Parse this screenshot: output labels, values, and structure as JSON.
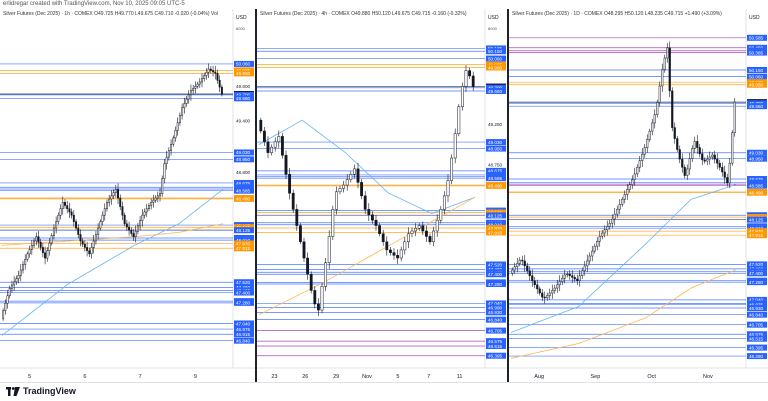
{
  "header": {
    "text": "erlidregar created with TradingView.com, Nov 10, 2025 09:05 UTC-5"
  },
  "footer": {
    "brand": "TradingView"
  },
  "colors": {
    "level_blue": "#2962ff",
    "level_magenta": "#9c27b0",
    "level_orange": "#ff9800",
    "ma_blue": "#64b5f6",
    "ma_orange": "#ffb74d",
    "candle": "#131722",
    "current_price_bg": "#131722"
  },
  "panels": [
    {
      "id": "left",
      "title": "Silver Futures (Dec 2025) · 1h · COMEX  O49.725  H49.770  L49.675  C49.710  -0.020 (-0.04%)  Vol",
      "currency": "USD",
      "unit_label": "8000",
      "x_labels": [
        "5",
        "6",
        "7",
        "9"
      ],
      "price_labels": [
        {
          "v": "50.060",
          "k": "blue"
        },
        {
          "v": "49.985",
          "k": "orange"
        },
        {
          "v": "49.950",
          "k": "orange"
        },
        {
          "v": "49.800",
          "k": "plain"
        },
        {
          "v": "49.710",
          "k": "current"
        },
        {
          "v": "49.700",
          "k": "blue"
        },
        {
          "v": "49.660",
          "k": "blue"
        },
        {
          "v": "49.400",
          "k": "plain"
        },
        {
          "v": "49.030",
          "k": "blue"
        },
        {
          "v": "48.950",
          "k": "blue"
        },
        {
          "v": "48.800",
          "k": "plain"
        },
        {
          "v": "48.675",
          "k": "blue"
        },
        {
          "v": "48.625",
          "k": "blue"
        },
        {
          "v": "48.605",
          "k": "blue"
        },
        {
          "v": "48.585",
          "k": "blue"
        },
        {
          "v": "48.500",
          "k": "orange"
        },
        {
          "v": "48.490",
          "k": "orange"
        },
        {
          "v": "48.185",
          "k": "blue"
        },
        {
          "v": "48.160",
          "k": "orange"
        },
        {
          "v": "48.130",
          "k": "orange"
        },
        {
          "v": "48.125",
          "k": "blue"
        },
        {
          "v": "48.035",
          "k": "blue"
        },
        {
          "v": "48.010",
          "k": "blue"
        },
        {
          "v": "47.970",
          "k": "orange"
        },
        {
          "v": "47.915",
          "k": "orange"
        },
        {
          "v": "47.520",
          "k": "blue"
        },
        {
          "v": "47.460",
          "k": "blue"
        },
        {
          "v": "47.425",
          "k": "blue"
        },
        {
          "v": "47.400",
          "k": "blue"
        },
        {
          "v": "47.300",
          "k": "blue"
        },
        {
          "v": "47.280",
          "k": "blue"
        },
        {
          "v": "47.040",
          "k": "blue"
        },
        {
          "v": "46.975",
          "k": "blue"
        },
        {
          "v": "46.915",
          "k": "blue"
        },
        {
          "v": "46.840",
          "k": "blue"
        }
      ]
    },
    {
      "id": "middle",
      "title": "Silver Futures (Dec 2025) · 4h · COMEX  O49.880  H50.120  L49.675  C49.715  -0.160 (-0.32%)",
      "currency": "USD",
      "unit_label": "8000",
      "x_labels": [
        "23",
        "26",
        "29",
        "Nov",
        "5",
        "7",
        "11"
      ],
      "price_labels": [
        {
          "v": "50.185",
          "k": "blue"
        },
        {
          "v": "50.150",
          "k": "blue"
        },
        {
          "v": "50.060",
          "k": "blue"
        },
        {
          "v": "49.985",
          "k": "orange"
        },
        {
          "v": "49.950",
          "k": "orange"
        },
        {
          "v": "49.715",
          "k": "current"
        },
        {
          "v": "49.700",
          "k": "blue"
        },
        {
          "v": "49.660",
          "k": "blue"
        },
        {
          "v": "49.250",
          "k": "plain"
        },
        {
          "v": "49.030",
          "k": "blue"
        },
        {
          "v": "48.950",
          "k": "blue"
        },
        {
          "v": "48.750",
          "k": "plain"
        },
        {
          "v": "48.675",
          "k": "blue"
        },
        {
          "v": "48.625",
          "k": "blue"
        },
        {
          "v": "48.605",
          "k": "blue"
        },
        {
          "v": "48.585",
          "k": "blue"
        },
        {
          "v": "48.500",
          "k": "orange"
        },
        {
          "v": "48.490",
          "k": "orange"
        },
        {
          "v": "48.185",
          "k": "blue"
        },
        {
          "v": "48.160",
          "k": "orange"
        },
        {
          "v": "48.130",
          "k": "orange"
        },
        {
          "v": "48.125",
          "k": "blue"
        },
        {
          "v": "48.035",
          "k": "blue"
        },
        {
          "v": "48.010",
          "k": "blue"
        },
        {
          "v": "47.970",
          "k": "orange"
        },
        {
          "v": "47.915",
          "k": "orange"
        },
        {
          "v": "47.520",
          "k": "blue"
        },
        {
          "v": "47.460",
          "k": "blue"
        },
        {
          "v": "47.425",
          "k": "blue"
        },
        {
          "v": "47.400",
          "k": "blue"
        },
        {
          "v": "47.300",
          "k": "blue"
        },
        {
          "v": "47.280",
          "k": "blue"
        },
        {
          "v": "47.040",
          "k": "blue"
        },
        {
          "v": "46.990",
          "k": "blue"
        },
        {
          "v": "46.930",
          "k": "blue"
        },
        {
          "v": "46.840",
          "k": "blue"
        },
        {
          "v": "46.705",
          "k": "blue"
        },
        {
          "v": "46.575",
          "k": "blue"
        },
        {
          "v": "46.515",
          "k": "blue"
        },
        {
          "v": "46.395",
          "k": "blue"
        }
      ]
    },
    {
      "id": "right",
      "title": "Silver Futures (Dec 2025) · 1D · COMEX  O48.295  H50.120  L48.235  C49.715  +1.490 (+3.09%)",
      "currency": "USD",
      "unit_label": "",
      "x_labels": [
        "Aug",
        "Sep",
        "Oct",
        "Nov"
      ],
      "price_labels": [
        {
          "v": "50.585",
          "k": "blue"
        },
        {
          "v": "50.450",
          "k": "blue"
        },
        {
          "v": "50.410",
          "k": "blue"
        },
        {
          "v": "50.385",
          "k": "blue"
        },
        {
          "v": "50.150",
          "k": "blue"
        },
        {
          "v": "50.060",
          "k": "blue"
        },
        {
          "v": "49.985",
          "k": "orange"
        },
        {
          "v": "49.950",
          "k": "orange"
        },
        {
          "v": "49.715",
          "k": "current"
        },
        {
          "v": "49.700",
          "k": "blue"
        },
        {
          "v": "49.660",
          "k": "blue"
        },
        {
          "v": "49.030",
          "k": "blue"
        },
        {
          "v": "48.950",
          "k": "blue"
        },
        {
          "v": "48.675",
          "k": "blue"
        },
        {
          "v": "48.625",
          "k": "blue"
        },
        {
          "v": "48.605",
          "k": "blue"
        },
        {
          "v": "48.585",
          "k": "blue"
        },
        {
          "v": "48.500",
          "k": "orange"
        },
        {
          "v": "48.490",
          "k": "orange"
        },
        {
          "v": "48.185",
          "k": "blue"
        },
        {
          "v": "48.160",
          "k": "orange"
        },
        {
          "v": "48.130",
          "k": "orange"
        },
        {
          "v": "48.125",
          "k": "blue"
        },
        {
          "v": "48.035",
          "k": "blue"
        },
        {
          "v": "48.010",
          "k": "blue"
        },
        {
          "v": "47.970",
          "k": "orange"
        },
        {
          "v": "47.915",
          "k": "orange"
        },
        {
          "v": "47.520",
          "k": "blue"
        },
        {
          "v": "47.460",
          "k": "blue"
        },
        {
          "v": "47.425",
          "k": "blue"
        },
        {
          "v": "47.400",
          "k": "blue"
        },
        {
          "v": "47.300",
          "k": "blue"
        },
        {
          "v": "47.280",
          "k": "blue"
        },
        {
          "v": "47.040",
          "k": "blue"
        },
        {
          "v": "46.990",
          "k": "blue"
        },
        {
          "v": "46.975",
          "k": "blue"
        },
        {
          "v": "46.930",
          "k": "blue"
        },
        {
          "v": "46.840",
          "k": "blue"
        },
        {
          "v": "46.705",
          "k": "blue"
        },
        {
          "v": "46.575",
          "k": "blue"
        },
        {
          "v": "46.515",
          "k": "blue"
        },
        {
          "v": "46.395",
          "k": "blue"
        },
        {
          "v": "46.280",
          "k": "blue"
        }
      ]
    }
  ],
  "chart_data": [
    {
      "type": "candlestick",
      "title": "Silver Futures (Dec 2025) · 1h · COMEX",
      "ohlc": {
        "open": 49.725,
        "high": 49.77,
        "low": 49.675,
        "close": 49.71,
        "change": -0.02,
        "change_pct": -0.04
      },
      "x_ticks": [
        "5",
        "6",
        "7",
        "9"
      ],
      "ylim": [
        46.65,
        50.35
      ],
      "close_path": [
        [
          0,
          47.1
        ],
        [
          0.04,
          47.45
        ],
        [
          0.08,
          47.6
        ],
        [
          0.12,
          47.85
        ],
        [
          0.16,
          48.05
        ],
        [
          0.2,
          47.8
        ],
        [
          0.24,
          48.15
        ],
        [
          0.28,
          48.45
        ],
        [
          0.32,
          48.3
        ],
        [
          0.36,
          48.0
        ],
        [
          0.4,
          47.85
        ],
        [
          0.44,
          48.15
        ],
        [
          0.48,
          48.45
        ],
        [
          0.52,
          48.6
        ],
        [
          0.56,
          48.2
        ],
        [
          0.6,
          48.05
        ],
        [
          0.64,
          48.3
        ],
        [
          0.68,
          48.45
        ],
        [
          0.72,
          48.55
        ],
        [
          0.74,
          48.9
        ],
        [
          0.78,
          49.2
        ],
        [
          0.82,
          49.55
        ],
        [
          0.86,
          49.75
        ],
        [
          0.9,
          49.85
        ],
        [
          0.94,
          50.0
        ],
        [
          0.97,
          49.95
        ],
        [
          1.0,
          49.71
        ]
      ],
      "moving_averages": [
        {
          "color": "blue",
          "path": [
            [
              0,
              46.9
            ],
            [
              0.3,
              47.5
            ],
            [
              0.6,
              47.95
            ],
            [
              0.8,
              48.2
            ],
            [
              1.0,
              48.6
            ]
          ]
        },
        {
          "color": "orange",
          "path": [
            [
              0,
              47.95
            ],
            [
              0.3,
              48.0
            ],
            [
              0.6,
              48.05
            ],
            [
              0.8,
              48.1
            ],
            [
              1.0,
              48.2
            ]
          ]
        }
      ]
    },
    {
      "type": "candlestick",
      "title": "Silver Futures (Dec 2025) · 4h · COMEX",
      "ohlc": {
        "open": 49.88,
        "high": 50.12,
        "low": 49.675,
        "close": 49.715,
        "change": -0.16,
        "change_pct": -0.32
      },
      "x_ticks": [
        "23",
        "26",
        "29",
        "Nov",
        "5",
        "7",
        "11"
      ],
      "ylim": [
        46.33,
        50.4
      ],
      "close_path": [
        [
          0,
          49.3
        ],
        [
          0.05,
          48.9
        ],
        [
          0.1,
          49.1
        ],
        [
          0.15,
          48.4
        ],
        [
          0.2,
          47.8
        ],
        [
          0.25,
          47.2
        ],
        [
          0.28,
          46.9
        ],
        [
          0.32,
          47.6
        ],
        [
          0.36,
          48.4
        ],
        [
          0.4,
          48.5
        ],
        [
          0.45,
          48.7
        ],
        [
          0.5,
          48.2
        ],
        [
          0.55,
          48.0
        ],
        [
          0.6,
          47.7
        ],
        [
          0.65,
          47.6
        ],
        [
          0.7,
          47.9
        ],
        [
          0.75,
          48.0
        ],
        [
          0.8,
          47.8
        ],
        [
          0.85,
          48.2
        ],
        [
          0.88,
          48.5
        ],
        [
          0.91,
          49.0
        ],
        [
          0.94,
          49.6
        ],
        [
          0.97,
          49.95
        ],
        [
          1.0,
          49.715
        ]
      ],
      "moving_averages": [
        {
          "color": "blue",
          "path": [
            [
              0,
              49.0
            ],
            [
              0.2,
              49.3
            ],
            [
              0.4,
              48.9
            ],
            [
              0.6,
              48.4
            ],
            [
              0.8,
              48.15
            ],
            [
              1.0,
              48.35
            ]
          ]
        },
        {
          "color": "orange",
          "path": [
            [
              0,
              46.9
            ],
            [
              0.3,
              47.3
            ],
            [
              0.6,
              47.75
            ],
            [
              0.8,
              48.05
            ],
            [
              1.0,
              48.35
            ]
          ]
        }
      ]
    },
    {
      "type": "candlestick",
      "title": "Silver Futures (Dec 2025) · 1D · COMEX",
      "ohlc": {
        "open": 48.295,
        "high": 50.12,
        "low": 48.235,
        "close": 49.715,
        "change": 1.49,
        "change_pct": 3.09
      },
      "x_ticks": [
        "Aug",
        "Sep",
        "Oct",
        "Nov"
      ],
      "ylim": [
        46.2,
        50.65
      ],
      "close_path": [
        [
          0,
          47.4
        ],
        [
          0.05,
          47.6
        ],
        [
          0.1,
          47.3
        ],
        [
          0.15,
          47.05
        ],
        [
          0.2,
          47.2
        ],
        [
          0.25,
          47.4
        ],
        [
          0.3,
          47.3
        ],
        [
          0.35,
          47.6
        ],
        [
          0.4,
          47.9
        ],
        [
          0.45,
          48.1
        ],
        [
          0.5,
          48.4
        ],
        [
          0.55,
          48.7
        ],
        [
          0.6,
          49.1
        ],
        [
          0.65,
          49.6
        ],
        [
          0.68,
          50.2
        ],
        [
          0.7,
          50.45
        ],
        [
          0.72,
          49.4
        ],
        [
          0.75,
          49.0
        ],
        [
          0.78,
          48.7
        ],
        [
          0.82,
          49.2
        ],
        [
          0.86,
          48.9
        ],
        [
          0.9,
          49.0
        ],
        [
          0.94,
          48.8
        ],
        [
          0.97,
          48.6
        ],
        [
          1.0,
          49.715
        ]
      ],
      "moving_averages": [
        {
          "color": "blue",
          "path": [
            [
              0,
              46.6
            ],
            [
              0.3,
              46.95
            ],
            [
              0.6,
              47.8
            ],
            [
              0.8,
              48.4
            ],
            [
              1.0,
              48.6
            ]
          ]
        },
        {
          "color": "orange",
          "path": [
            [
              0,
              46.25
            ],
            [
              0.3,
              46.45
            ],
            [
              0.6,
              46.8
            ],
            [
              0.8,
              47.2
            ],
            [
              1.0,
              47.45
            ]
          ]
        }
      ]
    }
  ]
}
